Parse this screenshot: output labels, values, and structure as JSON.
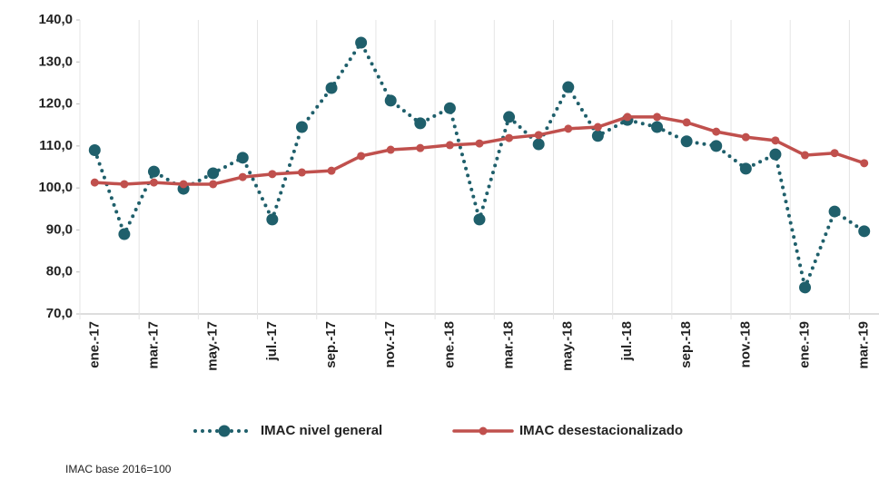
{
  "chart_data": {
    "type": "line",
    "categories": [
      "ene.-17",
      null,
      "mar.-17",
      null,
      "may.-17",
      null,
      "jul.-17",
      null,
      "sep.-17",
      null,
      "nov.-17",
      null,
      "ene.-18",
      null,
      "mar.-18",
      null,
      "may.-18",
      null,
      "jul.-18",
      null,
      "sep.-18",
      null,
      "nov.-18",
      null,
      "ene.-19",
      null,
      "mar.-19"
    ],
    "series": [
      {
        "name": "IMAC nivel general",
        "color": "#1f5f6b",
        "style": "dotted",
        "values": [
          109.0,
          89.0,
          103.9,
          99.8,
          103.5,
          107.2,
          92.5,
          114.5,
          123.8,
          134.6,
          120.8,
          115.4,
          119.0,
          92.5,
          116.9,
          110.4,
          124.0,
          112.4,
          116.2,
          114.5,
          111.1,
          110.0,
          104.6,
          108.0,
          76.3,
          94.4,
          89.7
        ]
      },
      {
        "name": "IMAC desestacionalizado",
        "color": "#c0504d",
        "style": "solid",
        "values": [
          101.3,
          100.9,
          101.3,
          100.9,
          100.9,
          102.6,
          103.3,
          103.7,
          104.1,
          107.6,
          109.1,
          109.5,
          110.2,
          110.6,
          111.9,
          112.6,
          114.1,
          114.5,
          116.9,
          116.9,
          115.6,
          113.4,
          112.1,
          111.3,
          107.8,
          108.3,
          105.9
        ]
      }
    ],
    "ylim": [
      70,
      140
    ],
    "yticks": [
      {
        "value": 70,
        "label": "70,0"
      },
      {
        "value": 80,
        "label": "80,0"
      },
      {
        "value": 90,
        "label": "90,0"
      },
      {
        "value": 100,
        "label": "100,0"
      },
      {
        "value": 110,
        "label": "110,0"
      },
      {
        "value": 120,
        "label": "120,0"
      },
      {
        "value": 130,
        "label": "130,0"
      },
      {
        "value": 140,
        "label": "140,0"
      }
    ],
    "legend": "bottom",
    "footnote": "IMAC base 2016=100"
  }
}
